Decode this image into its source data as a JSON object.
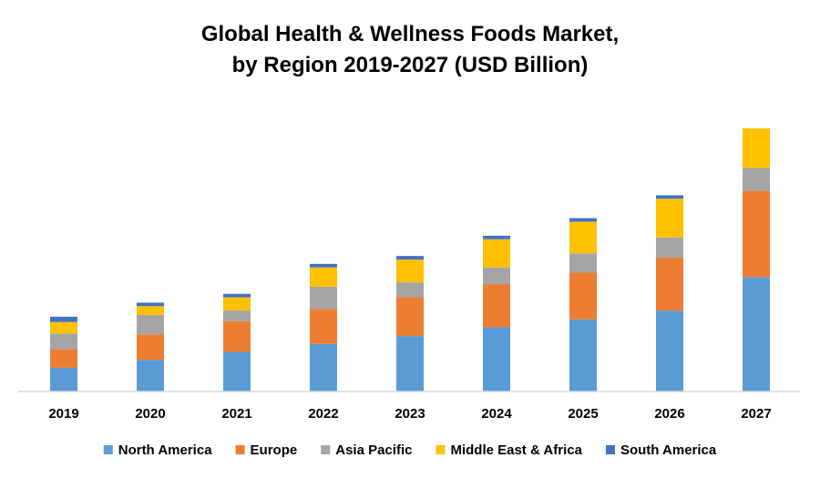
{
  "chart_data": {
    "type": "bar",
    "stacked": true,
    "title": [
      "Global Health & Wellness Foods Market,",
      "by Region 2019-2027 (USD Billion)"
    ],
    "xlabel": "",
    "ylabel": "",
    "categories": [
      "2019",
      "2020",
      "2021",
      "2022",
      "2023",
      "2024",
      "2025",
      "2026",
      "2027"
    ],
    "ylim": [
      0,
      300
    ],
    "grid": false,
    "legend": "bottom",
    "series": [
      {
        "name": "North America",
        "color": "#5B9BD5",
        "values": [
          27,
          36,
          45,
          54,
          63,
          73,
          82,
          92,
          130
        ]
      },
      {
        "name": "Europe",
        "color": "#ED7D31",
        "values": [
          21,
          29,
          35,
          40,
          44,
          49,
          53,
          60,
          98
        ]
      },
      {
        "name": "Asia Pacific",
        "color": "#A5A5A5",
        "values": [
          18,
          22,
          12,
          25,
          17,
          19,
          22,
          23,
          26
        ]
      },
      {
        "name": "Middle East & Africa",
        "color": "#FFC000",
        "values": [
          13,
          10,
          15,
          22,
          26,
          32,
          36,
          44,
          45
        ]
      },
      {
        "name": "South America",
        "color": "#4472C4",
        "values": [
          6,
          4,
          4,
          4,
          4,
          4,
          4,
          4,
          0
        ]
      }
    ]
  }
}
